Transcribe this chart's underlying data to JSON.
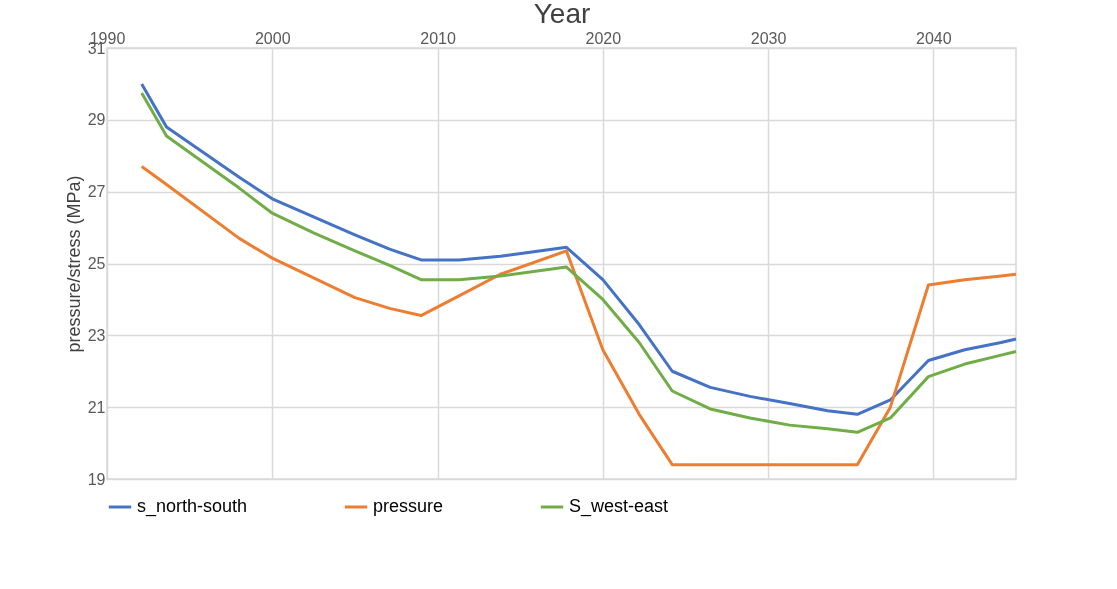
{
  "chart_data": {
    "type": "line",
    "xlabel": "Year",
    "ylabel": "pressure/stress (MPa)",
    "x": [
      1992.1,
      1993.6,
      1998.0,
      2000.0,
      2002.5,
      2005.0,
      2007.1,
      2009.0,
      2011.3,
      2013.8,
      2017.8,
      2020.0,
      2022.2,
      2024.2,
      2026.5,
      2028.9,
      2031.3,
      2033.6,
      2035.4,
      2037.4,
      2039.7,
      2041.9,
      2044.1,
      2045.0
    ],
    "series": [
      {
        "name": "s_north-south",
        "color": "#4472c4",
        "values": [
          30.0,
          28.8,
          27.4,
          26.8,
          26.3,
          25.8,
          25.4,
          25.1,
          25.1,
          25.2,
          25.45,
          24.55,
          23.3,
          22.0,
          21.55,
          21.3,
          21.1,
          20.9,
          20.8,
          21.2,
          22.3,
          22.6,
          22.8,
          22.9
        ]
      },
      {
        "name": "pressure",
        "color": "#ed7d31",
        "values": [
          27.7,
          27.2,
          25.7,
          25.15,
          24.6,
          24.05,
          23.75,
          23.55,
          24.1,
          24.7,
          25.35,
          22.6,
          20.8,
          19.4,
          19.4,
          19.4,
          19.4,
          19.4,
          19.4,
          21.0,
          24.4,
          24.55,
          24.65,
          24.7
        ]
      },
      {
        "name": "S_west-east",
        "color": "#70ad47",
        "values": [
          29.75,
          28.55,
          27.1,
          26.4,
          25.85,
          25.35,
          24.95,
          24.55,
          24.55,
          24.65,
          24.9,
          24.0,
          22.8,
          21.45,
          20.95,
          20.7,
          20.5,
          20.4,
          20.3,
          20.7,
          21.85,
          22.2,
          22.45,
          22.55
        ]
      }
    ],
    "xlim": [
      1990,
      2045
    ],
    "xticks": [
      1990,
      2000,
      2010,
      2020,
      2030,
      2040
    ],
    "ylim": [
      19,
      31
    ],
    "yticks": [
      19,
      21,
      23,
      25,
      27,
      29,
      31
    ],
    "grid": true,
    "legend": "bottom",
    "marker": "none",
    "line_style": "solid"
  }
}
